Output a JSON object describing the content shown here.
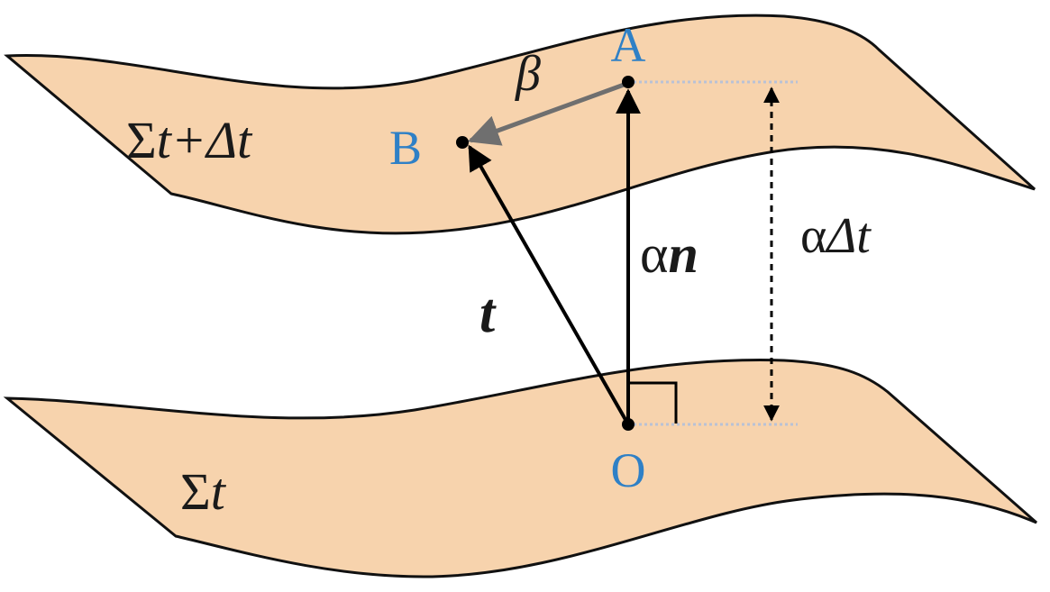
{
  "colors": {
    "sheet_fill": "#f7d3ad",
    "sheet_stroke": "#111111",
    "point_label": "#2f80c6",
    "vector": "#000000",
    "shift_vector": "#6f6f6f",
    "guide": "#b8c2d6"
  },
  "surfaces": {
    "upper": {
      "label_sigma": "Σ",
      "label_sub": "t+Δt"
    },
    "lower": {
      "label_sigma": "Σ",
      "label_sub": "t"
    }
  },
  "points": {
    "A": "A",
    "B": "B",
    "O": "O"
  },
  "vectors": {
    "shift": "β",
    "tangent": "t",
    "normal_coef": "α",
    "normal_vec": "n"
  },
  "separation": {
    "alpha": "α",
    "delta_t": "Δt"
  }
}
